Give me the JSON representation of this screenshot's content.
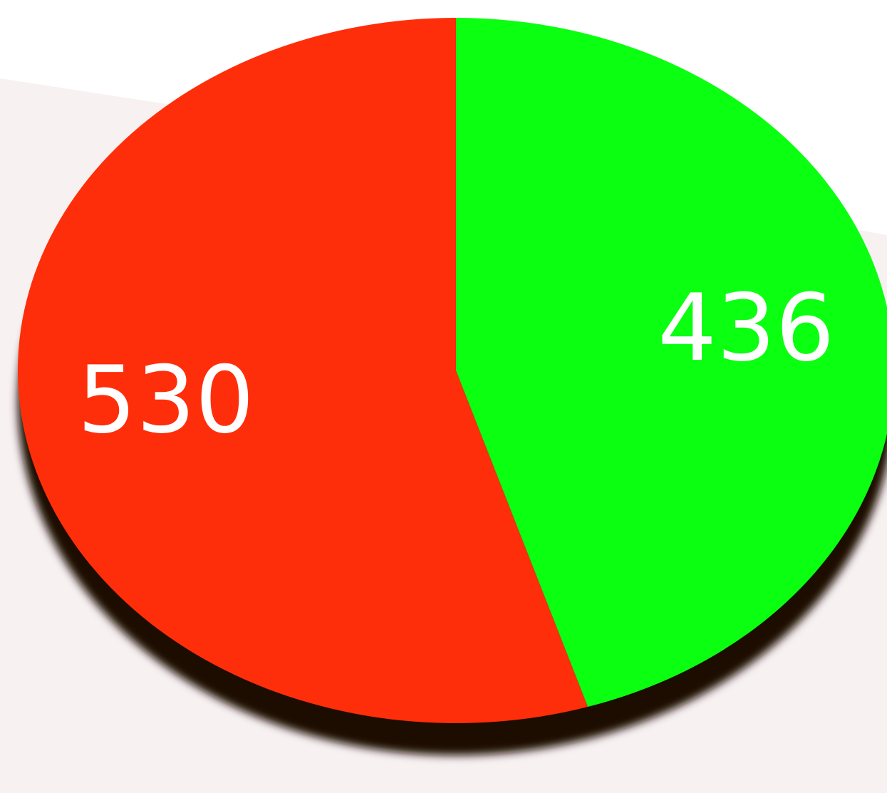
{
  "chart_data": {
    "type": "pie",
    "values": [
      530,
      436
    ],
    "colors": [
      "#ff2e0a",
      "#0aff10"
    ]
  }
}
